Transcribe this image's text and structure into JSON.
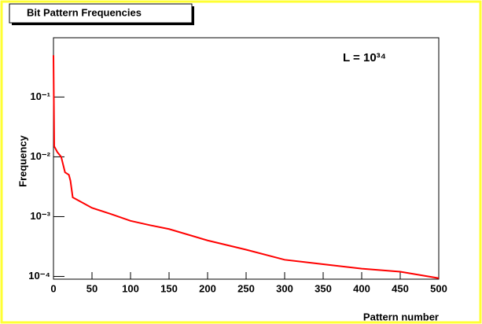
{
  "chart_data": {
    "type": "line",
    "title": "Bit Pattern Frequencies",
    "annotation": "L = 10³⁴",
    "x_label": "Pattern number",
    "y_label": "Frequency",
    "x": [
      0,
      1,
      5,
      10,
      15,
      20,
      22,
      25,
      50,
      75,
      100,
      125,
      150,
      200,
      250,
      300,
      350,
      400,
      450,
      500
    ],
    "values": [
      0.5,
      0.015,
      0.012,
      0.01,
      0.0055,
      0.005,
      0.004,
      0.0021,
      0.0014,
      0.0011,
      0.00085,
      0.00072,
      0.00062,
      0.0004,
      0.00028,
      0.00019,
      0.00016,
      0.000135,
      0.00012,
      9.35e-05
    ],
    "color": "#ff0000",
    "xlim": [
      0,
      500
    ],
    "xticks": [
      0,
      50,
      100,
      150,
      200,
      250,
      300,
      350,
      400,
      450,
      500
    ],
    "ylim": [
      9e-05,
      0.98
    ],
    "log_y": true,
    "yticks": [
      {
        "value": 0.1,
        "label": "10⁻¹"
      },
      {
        "value": 0.01,
        "label": "10⁻²"
      },
      {
        "value": 0.001,
        "label": "10⁻³"
      },
      {
        "value": 0.0001,
        "label": "10⁻⁴"
      }
    ]
  }
}
